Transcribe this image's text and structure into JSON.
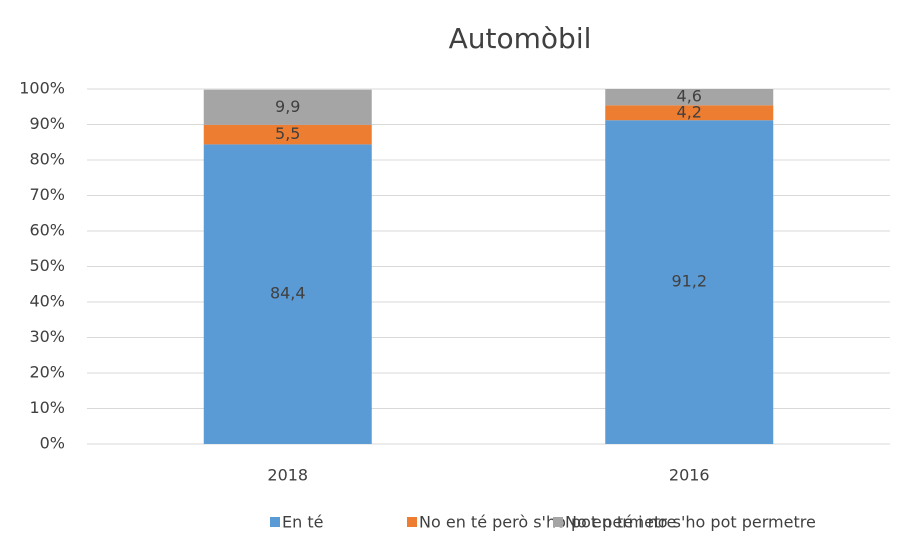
{
  "chart_data": {
    "type": "stacked_bar",
    "title": "Automòbil",
    "categories": [
      "2018",
      "2016"
    ],
    "series": [
      {
        "name": "En té",
        "color": "#5b9bd5",
        "values": [
          84.4,
          91.2
        ],
        "value_labels": [
          "84,4",
          "91,2"
        ]
      },
      {
        "name": "No en té però s'ho pot permetre",
        "color": "#ed7d31",
        "values": [
          5.5,
          4.2
        ],
        "value_labels": [
          "5,5",
          "4,2"
        ]
      },
      {
        "name": "No en té i no s'ho pot permetre",
        "color": "#a5a5a5",
        "values": [
          9.9,
          4.6
        ],
        "value_labels": [
          "9,9",
          "4,6"
        ]
      }
    ],
    "ylim": [
      0,
      100
    ],
    "yticks": [
      {
        "value": 0,
        "label": "0%"
      },
      {
        "value": 10,
        "label": "10%"
      },
      {
        "value": 20,
        "label": "20%"
      },
      {
        "value": 30,
        "label": "30%"
      },
      {
        "value": 40,
        "label": "40%"
      },
      {
        "value": 50,
        "label": "50%"
      },
      {
        "value": 60,
        "label": "60%"
      },
      {
        "value": 70,
        "label": "70%"
      },
      {
        "value": 80,
        "label": "80%"
      },
      {
        "value": 90,
        "label": "90%"
      },
      {
        "value": 100,
        "label": "100%"
      }
    ],
    "grid": true,
    "legend": "bottom"
  }
}
